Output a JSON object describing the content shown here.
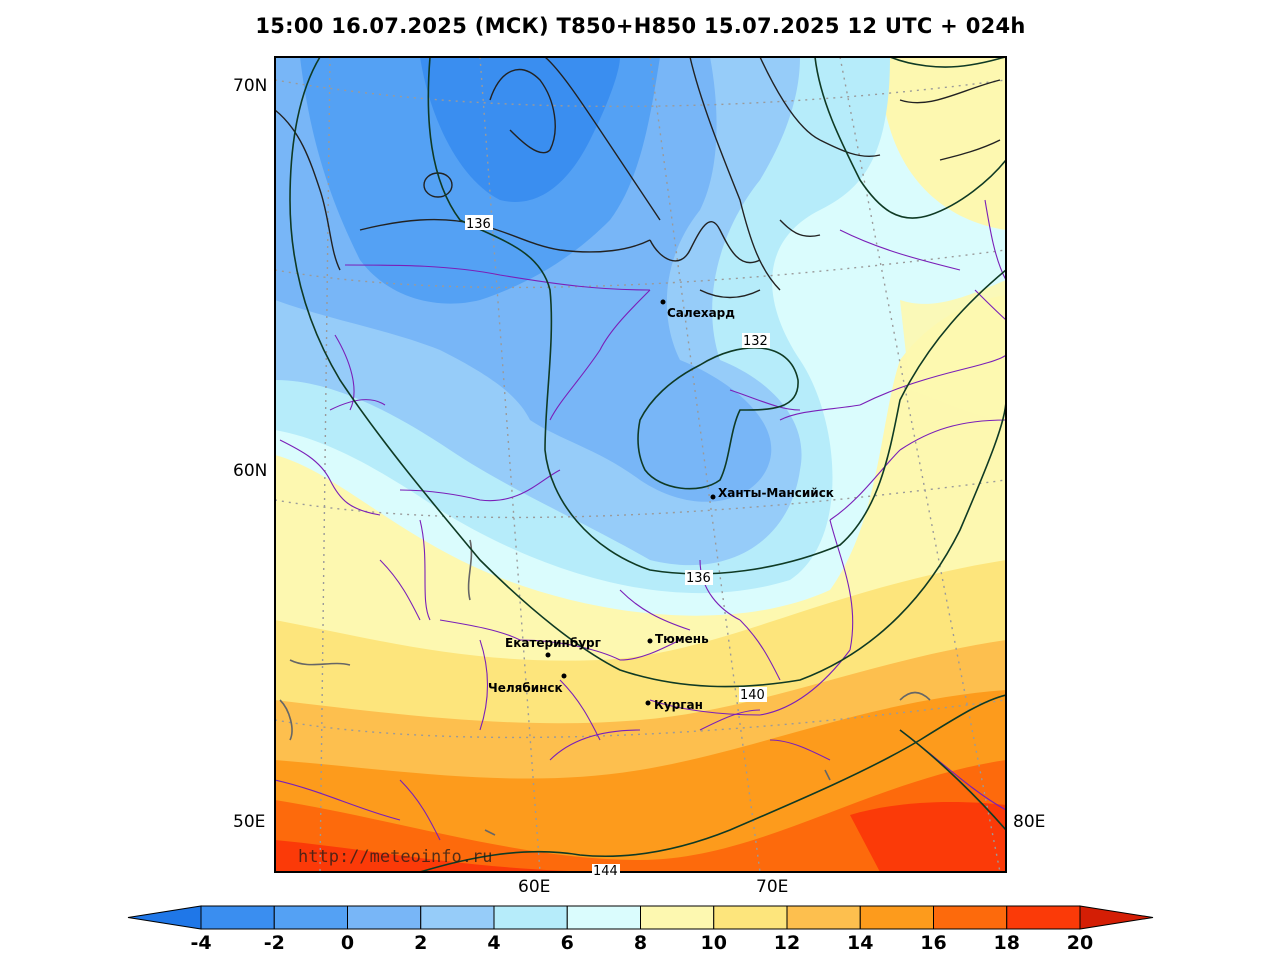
{
  "title": "15:00 16.07.2025 (МСК) T850+H850 15.07.2025 12 UTC + 024h",
  "watermark": "http://meteoinfo.ru",
  "lat_labels": [
    "70N",
    "60N",
    "50E"
  ],
  "lon_labels": [
    "60E",
    "70E",
    "80E"
  ],
  "cities": [
    {
      "name": "Салехард"
    },
    {
      "name": "Ханты-Мансийск"
    },
    {
      "name": "Екатеринбург"
    },
    {
      "name": "Тюмень"
    },
    {
      "name": "Челябинск"
    },
    {
      "name": "Курган"
    }
  ],
  "contour_labels": [
    "136",
    "132",
    "136",
    "140",
    "144"
  ],
  "colorbar": {
    "ticks": [
      "-4",
      "-2",
      "0",
      "2",
      "4",
      "6",
      "8",
      "10",
      "12",
      "14",
      "16",
      "18",
      "20"
    ],
    "colors": [
      "#1f77e8",
      "#3a8ef0",
      "#54a1f4",
      "#78b6f7",
      "#96ccf9",
      "#b6ecfa",
      "#dafcfd",
      "#fdf8b0",
      "#fde57c",
      "#fdbf4e",
      "#fd9b1c",
      "#fd6a0c",
      "#fb3a08",
      "#d41e05"
    ]
  },
  "colors": {
    "border": "#7a1fb8",
    "coast": "#222222",
    "contour": "#0f3a24",
    "grid": "#9a9a9a"
  }
}
